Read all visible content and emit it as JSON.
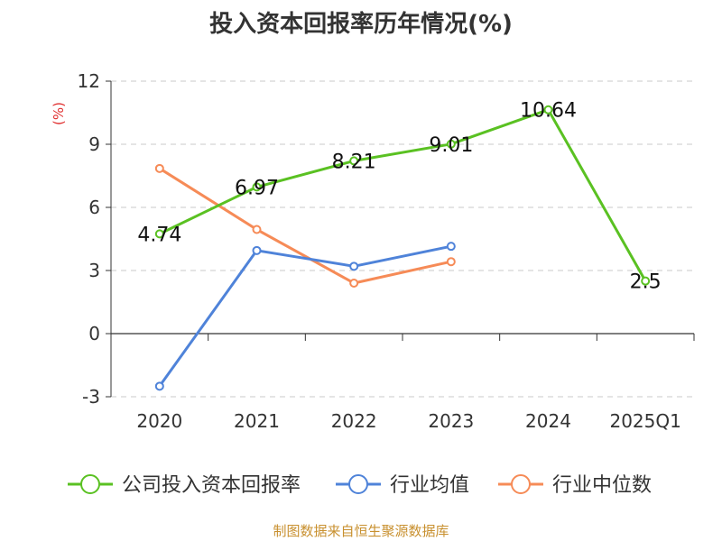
{
  "title": "投入资本回报率历年情况(%)",
  "source": "制图数据来自恒生聚源数据库",
  "chart_data": {
    "type": "line",
    "categories": [
      "2020",
      "2021",
      "2022",
      "2023",
      "2024",
      "2025Q1"
    ],
    "ylabel": "(%)",
    "ylim": [
      -3,
      12
    ],
    "yticks": [
      -3,
      0,
      3,
      6,
      9,
      12
    ],
    "grid": true,
    "legend_position": "bottom",
    "series": [
      {
        "name": "公司投入资本回报率",
        "color": "#5ac122",
        "values": [
          4.74,
          6.97,
          8.21,
          9.01,
          10.64,
          2.5
        ],
        "labels": [
          "4.74",
          "6.97",
          "8.21",
          "9.01",
          "10.64",
          "2.5"
        ]
      },
      {
        "name": "行业均值",
        "color": "#4f83d9",
        "values": [
          -2.5,
          3.95,
          3.2,
          4.15,
          null,
          null
        ]
      },
      {
        "name": "行业中位数",
        "color": "#f68b57",
        "values": [
          7.85,
          4.95,
          2.4,
          3.42,
          null,
          null
        ]
      }
    ]
  }
}
